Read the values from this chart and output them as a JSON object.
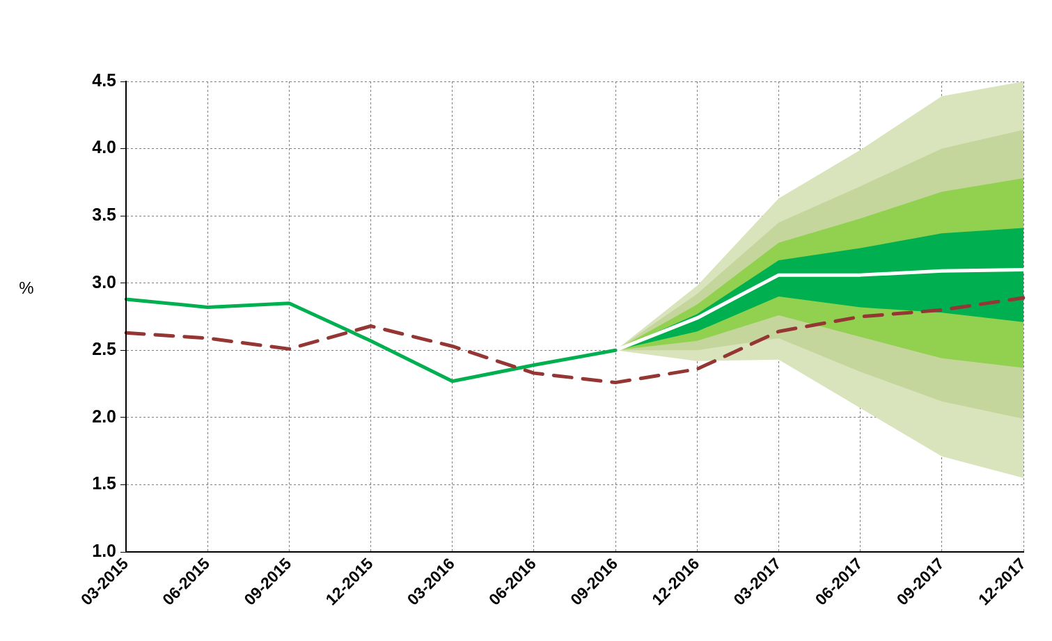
{
  "chart_data": {
    "type": "line",
    "ylabel": "%",
    "categories": [
      "03-2015",
      "06-2015",
      "09-2015",
      "12-2015",
      "03-2016",
      "06-2016",
      "09-2016",
      "12-2016",
      "03-2017",
      "06-2017",
      "09-2017",
      "12-2017"
    ],
    "ylim": [
      1.0,
      4.5
    ],
    "yticks": [
      {
        "value": 1,
        "label": "1.0"
      },
      {
        "value": 1.5,
        "label": "1.5"
      },
      {
        "value": 2,
        "label": "2.0"
      },
      {
        "value": 2.5,
        "label": "2.5"
      },
      {
        "value": 3,
        "label": "3.0"
      },
      {
        "value": 3.5,
        "label": "3.5"
      },
      {
        "value": 4,
        "label": "4.0"
      },
      {
        "value": 4.5,
        "label": "4.5"
      }
    ],
    "grid": true,
    "legend": false,
    "marker": "none",
    "series": [
      {
        "type": "area",
        "color": "#d9e4bd",
        "values": [
          null,
          null,
          null,
          null,
          null,
          null,
          null,
          null,
          null,
          null,
          null,
          null
        ],
        "lower": [
          null,
          null,
          null,
          null,
          null,
          null,
          2.5,
          2.42,
          2.43,
          2.07,
          1.71,
          1.55
        ],
        "upper": [
          null,
          null,
          null,
          null,
          null,
          null,
          2.5,
          2.98,
          3.63,
          3.99,
          4.39,
          4.5
        ]
      },
      {
        "type": "area",
        "color": "#c5d69d",
        "values": [
          null,
          null,
          null,
          null,
          null,
          null,
          null,
          null,
          null,
          null,
          null,
          null
        ],
        "lower": [
          null,
          null,
          null,
          null,
          null,
          null,
          2.5,
          2.5,
          2.59,
          2.34,
          2.12,
          1.99
        ],
        "upper": [
          null,
          null,
          null,
          null,
          null,
          null,
          2.5,
          2.92,
          3.45,
          3.72,
          4.0,
          4.14
        ]
      },
      {
        "type": "area",
        "color": "#92d050",
        "values": [
          null,
          null,
          null,
          null,
          null,
          null,
          null,
          null,
          null,
          null,
          null,
          null
        ],
        "lower": [
          null,
          null,
          null,
          null,
          null,
          null,
          2.5,
          2.57,
          2.76,
          2.6,
          2.44,
          2.37
        ],
        "upper": [
          null,
          null,
          null,
          null,
          null,
          null,
          2.5,
          2.84,
          3.3,
          3.48,
          3.68,
          3.78
        ]
      },
      {
        "type": "area",
        "color": "#00b050",
        "values": [
          null,
          null,
          null,
          null,
          null,
          null,
          null,
          null,
          null,
          null,
          null,
          null
        ],
        "lower": [
          null,
          null,
          null,
          null,
          null,
          null,
          2.5,
          2.64,
          2.9,
          2.82,
          2.78,
          2.71
        ],
        "upper": [
          null,
          null,
          null,
          null,
          null,
          null,
          2.5,
          2.77,
          3.17,
          3.26,
          3.37,
          3.41
        ]
      },
      {
        "type": "line",
        "color": "#ffffff",
        "line_style": "solid",
        "values": [
          null,
          null,
          null,
          null,
          null,
          null,
          2.5,
          2.74,
          3.06,
          3.06,
          3.09,
          3.1
        ]
      },
      {
        "type": "line",
        "color": "#00b050",
        "line_style": "solid",
        "values": [
          2.88,
          2.82,
          2.85,
          2.57,
          2.27,
          2.39,
          2.5,
          null,
          null,
          null,
          null,
          null
        ]
      },
      {
        "type": "line",
        "color": "#943634",
        "line_style": "dashed",
        "values": [
          2.63,
          2.59,
          2.51,
          2.68,
          2.53,
          2.33,
          2.26,
          2.36,
          2.64,
          2.75,
          2.8,
          2.89
        ]
      }
    ]
  }
}
